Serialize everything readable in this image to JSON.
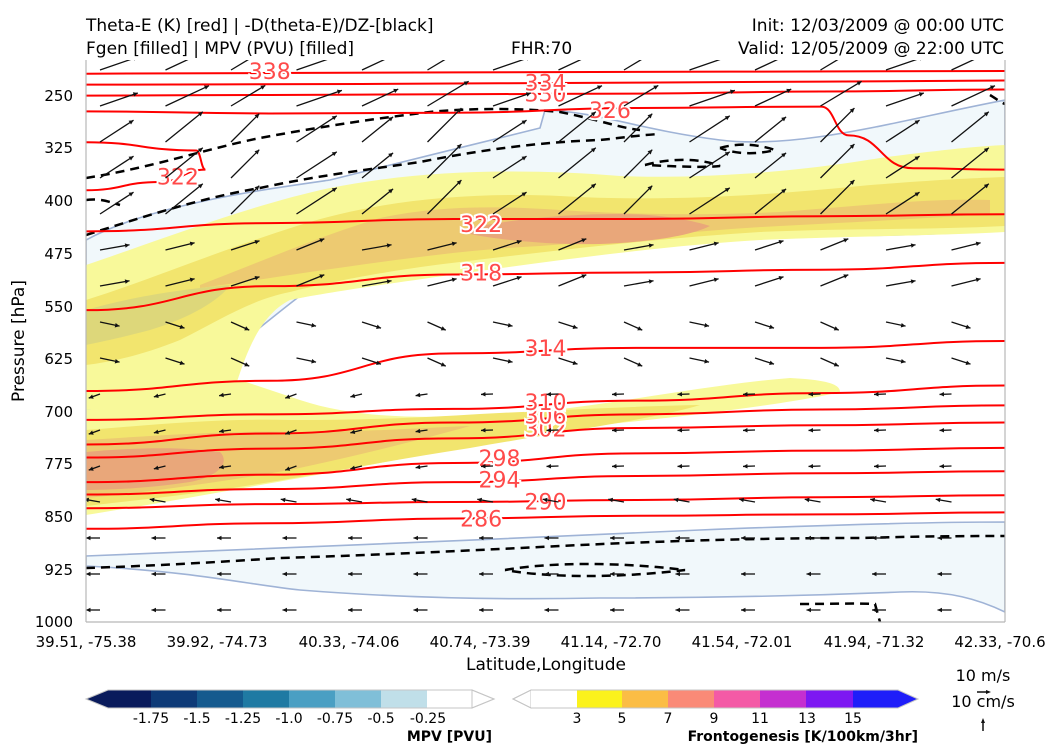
{
  "header": {
    "title_left_1": "Theta-E (K) [red] | -D(theta-E)/DZ-[black]",
    "title_left_2": "Fgen [filled] | MPV (PVU) [filled]",
    "fhr": "FHR:70",
    "init": "Init: 12/03/2009 @ 00:00 UTC",
    "valid": "Valid: 12/05/2009 @ 22:00 UTC"
  },
  "colors": {
    "theta_e": "#ff0000",
    "theta_e_label": "#ff4a4a",
    "ddz": "#000000",
    "mpv_outline": "#9fb3d6",
    "fgen": [
      "#f8f99a",
      "#f6ef6a",
      "#f2d56a",
      "#f0b679",
      "#e99a79"
    ]
  },
  "chart_data": {
    "type": "cross-section",
    "xlabel": "Latitude,Longitude",
    "ylabel": "Pressure [hPa]",
    "x_tick_labels": [
      "39.51, -75.38",
      "39.92, -74.73",
      "40.33, -74.06",
      "40.74, -73.39",
      "41.14, -72.70",
      "41.54, -72.01",
      "41.94, -71.32",
      "42.33, -70.6"
    ],
    "y_tick_labels": [
      "250",
      "325",
      "400",
      "475",
      "550",
      "625",
      "700",
      "775",
      "850",
      "925",
      "1000"
    ],
    "ylim": [
      1000,
      180
    ],
    "theta_e_contours": [
      {
        "value": 286,
        "label": "286",
        "label_pos": [
          0.43,
          849
        ],
        "points": [
          [
            0,
            864
          ],
          [
            0.2,
            856
          ],
          [
            0.4,
            849
          ],
          [
            0.6,
            845
          ],
          [
            0.8,
            843
          ],
          [
            1.0,
            840
          ]
        ]
      },
      {
        "value": 290,
        "label": "290",
        "label_pos": [
          0.5,
          824
        ],
        "points": [
          [
            0,
            834
          ],
          [
            0.2,
            828
          ],
          [
            0.4,
            825
          ],
          [
            0.6,
            822
          ],
          [
            0.8,
            818
          ],
          [
            1.0,
            815
          ]
        ]
      },
      {
        "value": 294,
        "label": "294",
        "label_pos": [
          0.45,
          792
        ],
        "points": [
          [
            0,
            814
          ],
          [
            0.2,
            806
          ],
          [
            0.4,
            796
          ],
          [
            0.6,
            787
          ],
          [
            0.8,
            783
          ],
          [
            1.0,
            780
          ]
        ]
      },
      {
        "value": 298,
        "label": "298",
        "label_pos": [
          0.45,
          761
        ],
        "points": [
          [
            0,
            796
          ],
          [
            0.2,
            785
          ],
          [
            0.4,
            768
          ],
          [
            0.6,
            754
          ],
          [
            0.8,
            750
          ],
          [
            1.0,
            746
          ]
        ]
      },
      {
        "value": 302,
        "label": "302",
        "label_pos": [
          0.5,
          718
        ],
        "points": [
          [
            0,
            760
          ],
          [
            0.2,
            747
          ],
          [
            0.4,
            732
          ],
          [
            0.6,
            717
          ],
          [
            0.8,
            713
          ],
          [
            1.0,
            709
          ]
        ]
      },
      {
        "value": 306,
        "label": "306",
        "label_pos": [
          0.5,
          699
        ],
        "points": [
          [
            0,
            741
          ],
          [
            0.2,
            725
          ],
          [
            0.4,
            709
          ],
          [
            0.6,
            697
          ],
          [
            0.8,
            690
          ],
          [
            1.0,
            684
          ]
        ]
      },
      {
        "value": 310,
        "label": "310",
        "label_pos": [
          0.5,
          679
        ],
        "points": [
          [
            0,
            705
          ],
          [
            0.2,
            697
          ],
          [
            0.4,
            689
          ],
          [
            0.6,
            677
          ],
          [
            0.8,
            666
          ],
          [
            1.0,
            655
          ]
        ]
      },
      {
        "value": 314,
        "label": "314",
        "label_pos": [
          0.5,
          600
        ],
        "points": [
          [
            0,
            663
          ],
          [
            0.2,
            648
          ],
          [
            0.4,
            608
          ],
          [
            0.6,
            600
          ],
          [
            0.8,
            600
          ],
          [
            1.0,
            590
          ]
        ]
      },
      {
        "value": 318,
        "label": "318",
        "label_pos": [
          0.43,
          490
        ],
        "points": [
          [
            0,
            545
          ],
          [
            0.2,
            510
          ],
          [
            0.4,
            493
          ],
          [
            0.6,
            490
          ],
          [
            0.8,
            486
          ],
          [
            1.0,
            476
          ]
        ]
      },
      {
        "value": 322,
        "label": "322",
        "label_pos": [
          0.43,
          419
        ],
        "points": [
          [
            0,
            430
          ],
          [
            0.2,
            418
          ],
          [
            0.4,
            412
          ],
          [
            0.6,
            412
          ],
          [
            0.8,
            408
          ],
          [
            1.0,
            405
          ]
        ]
      },
      {
        "value": 322,
        "label": "322",
        "label_pos": [
          0.1,
          350
        ],
        "points": [
          [
            0,
            300
          ],
          [
            0.12,
            312
          ],
          [
            0.13,
            340
          ],
          [
            0.08,
            358
          ],
          [
            0.0,
            370
          ]
        ]
      },
      {
        "value": 326,
        "label": "326",
        "label_pos": [
          0.57,
          253
        ],
        "points": [
          [
            0,
            255
          ],
          [
            0.2,
            258
          ],
          [
            0.4,
            257
          ],
          [
            0.6,
            250
          ],
          [
            0.8,
            248
          ],
          [
            0.83,
            290
          ],
          [
            0.9,
            338
          ],
          [
            1.0,
            340
          ]
        ]
      },
      {
        "value": 330,
        "label": "330",
        "label_pos": [
          0.5,
          229
        ],
        "points": [
          [
            0,
            232
          ],
          [
            0.2,
            231
          ],
          [
            0.4,
            230
          ],
          [
            0.6,
            229
          ],
          [
            0.8,
            226
          ],
          [
            1.0,
            223
          ]
        ]
      },
      {
        "value": 334,
        "label": "334",
        "label_pos": [
          0.5,
          213
        ],
        "points": [
          [
            0,
            216
          ],
          [
            0.3,
            215
          ],
          [
            0.6,
            213
          ],
          [
            1.0,
            210
          ]
        ]
      },
      {
        "value": 338,
        "label": "338",
        "label_pos": [
          0.2,
          196
        ],
        "points": [
          [
            0,
            200
          ],
          [
            0.4,
            198
          ],
          [
            1.0,
            196
          ]
        ]
      }
    ],
    "mpv_colorbar": {
      "label": "MPV [PVU]",
      "tick_labels": [
        "-1.75",
        "-1.5",
        "-1.25",
        "-1.0",
        "-0.75",
        "-0.5",
        "-0.25"
      ],
      "colors": [
        "#0a1b5c",
        "#0e3a77",
        "#155a8e",
        "#1f7aa3",
        "#4a9fc3",
        "#80bfd8",
        "#c0dfe9",
        "#ffffff"
      ]
    },
    "fgen_colorbar": {
      "label": "Frontogenesis [K/100km/3hr]",
      "tick_labels": [
        "3",
        "5",
        "7",
        "9",
        "11",
        "13",
        "15"
      ],
      "colors": [
        "#ffffff",
        "#fbf21c",
        "#fbbd45",
        "#fa8a77",
        "#f45aa6",
        "#c52fd0",
        "#7d18f2",
        "#1f1ef9"
      ]
    },
    "wind_key": {
      "u": "10 m/s",
      "w": "10 cm/s"
    }
  }
}
